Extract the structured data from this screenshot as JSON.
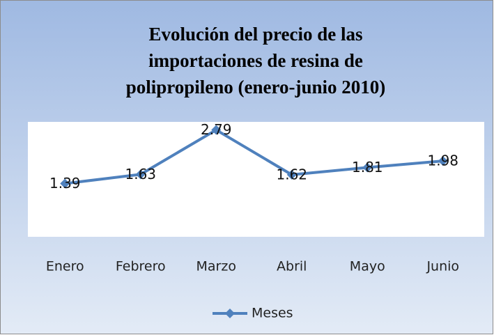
{
  "chart_data": {
    "type": "line",
    "title": "Evolución del precio de las importaciones de resina de polipropileno (enero-junio 2010)",
    "categories": [
      "Enero",
      "Febrero",
      "Marzo",
      "Abril",
      "Mayo",
      "Junio"
    ],
    "series": [
      {
        "name": "Meses",
        "color": "#4f81bd",
        "values": [
          1.39,
          1.63,
          2.79,
          1.62,
          1.81,
          1.98
        ]
      }
    ],
    "ylim": [
      0,
      3
    ],
    "legend": "bottom"
  }
}
